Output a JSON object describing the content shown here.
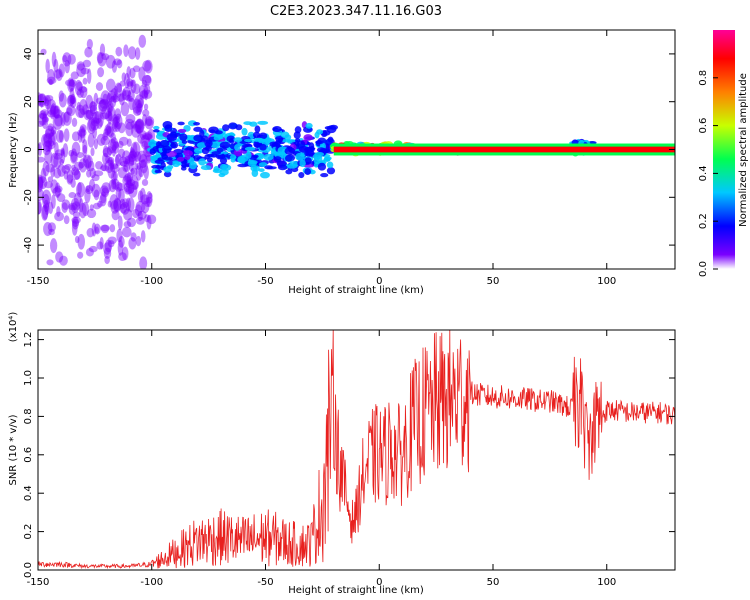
{
  "title": "C2E3.2023.347.11.16.G03",
  "colors": {
    "snr_line": "#e8201e",
    "axis": "#000000"
  },
  "chart_data": [
    {
      "type": "heatmap",
      "xlabel": "Height of straight line (km)",
      "ylabel": "Frequency (Hz)",
      "xlim": [
        -150,
        130
      ],
      "ylim": [
        -50,
        50
      ],
      "xticks": [
        -150,
        -100,
        -50,
        0,
        50,
        100
      ],
      "yticks": [
        -40,
        -20,
        0,
        20,
        40
      ],
      "colorbar": {
        "label": "Normalized spectral amplitude",
        "range": [
          0.0,
          1.0
        ],
        "ticks": [
          0.0,
          0.2,
          0.4,
          0.6,
          0.8
        ],
        "tick_labels": [
          "0.0",
          "0.2",
          "0.4",
          "0.6",
          "0.8"
        ],
        "colormap": [
          "#ffffff",
          "#7a00ff",
          "#0000ff",
          "#00c8ff",
          "#00ff50",
          "#c8ff00",
          "#ff8000",
          "#ff0000",
          "#ff0096"
        ]
      },
      "regions": [
        {
          "x_range": [
            -150,
            -100
          ],
          "freq_center": 0,
          "freq_spread": 50,
          "amplitude": 0.15,
          "description": "noise"
        },
        {
          "x_range": [
            -100,
            -20
          ],
          "freq_center": 0,
          "freq_spread": 12,
          "amplitude": 0.35
        },
        {
          "x_range": [
            -20,
            15
          ],
          "freq_center": 0.5,
          "freq_spread": 2,
          "amplitude": 0.75
        },
        {
          "x_range": [
            15,
            130
          ],
          "freq_center": 0,
          "freq_spread": 1,
          "amplitude": 0.9
        },
        {
          "x_range": [
            85,
            95
          ],
          "freq_center": 1,
          "freq_spread": 3,
          "amplitude": 0.4
        }
      ]
    },
    {
      "type": "line",
      "xlabel": "Height of straight line (km)",
      "ylabel": "SNR (10 * v/v)",
      "y_multiplier": "(x10⁴)",
      "xlim": [
        -150,
        130
      ],
      "ylim": [
        0,
        1.25
      ],
      "xticks": [
        -150,
        -100,
        -50,
        0,
        50,
        100
      ],
      "yticks": [
        0.0,
        0.2,
        0.4,
        0.6,
        0.8,
        1.0,
        1.2
      ],
      "ytick_labels": [
        "0.0",
        "0.2",
        "0.4",
        "0.6",
        "0.8",
        "1.0",
        "1.2"
      ],
      "series": [
        {
          "x": [
            -150,
            -140,
            -130,
            -120,
            -110,
            -100,
            -95,
            -90,
            -85,
            -80,
            -75,
            -70,
            -65,
            -60,
            -55,
            -50,
            -45,
            -40,
            -35,
            -30,
            -25,
            -22,
            -20,
            -18,
            -15,
            -12,
            -10,
            -8,
            -5,
            -2,
            0,
            3,
            5,
            8,
            10,
            13,
            15,
            20,
            25,
            30,
            35,
            40,
            45,
            50,
            55,
            60,
            65,
            70,
            75,
            80,
            85,
            88,
            90,
            92,
            95,
            100,
            105,
            110,
            115,
            120,
            125,
            130
          ],
          "y": [
            0.03,
            0.03,
            0.02,
            0.02,
            0.02,
            0.03,
            0.06,
            0.09,
            0.12,
            0.15,
            0.16,
            0.17,
            0.16,
            0.15,
            0.16,
            0.17,
            0.16,
            0.14,
            0.13,
            0.14,
            0.35,
            0.7,
            0.9,
            0.6,
            0.4,
            0.25,
            0.3,
            0.45,
            0.55,
            0.6,
            0.6,
            0.6,
            0.65,
            0.6,
            0.6,
            0.7,
            0.75,
            0.82,
            0.86,
            0.88,
            0.9,
            0.92,
            0.91,
            0.9,
            0.9,
            0.89,
            0.89,
            0.88,
            0.88,
            0.86,
            0.84,
            0.9,
            0.75,
            0.65,
            0.78,
            0.83,
            0.83,
            0.82,
            0.82,
            0.82,
            0.82,
            0.8
          ]
        }
      ]
    }
  ]
}
